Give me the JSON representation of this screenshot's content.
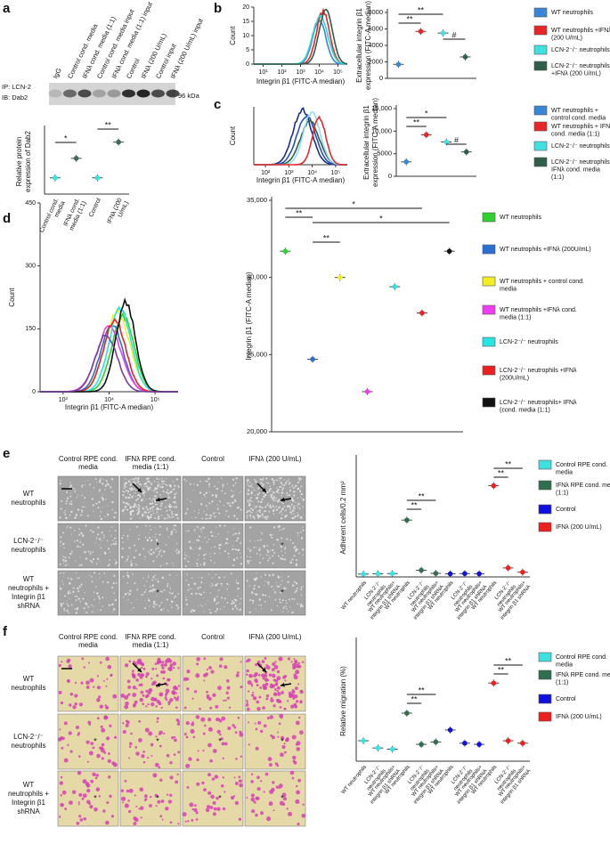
{
  "panel_labels": [
    "a",
    "b",
    "c",
    "d",
    "e",
    "f"
  ],
  "blot": {
    "lanes": [
      "IgG",
      "Control cond. media",
      "IFNλ cond. media (1:1)",
      "Control cond. media input",
      "IFNλ cond. media (1:1) input",
      "Control",
      "IFNλ (200 U/mL)",
      "Control input",
      "IFNλ (200 U/mL) input"
    ],
    "ip": "IP: LCN-2",
    "ib": "IB: Dab2",
    "size": "96 kDa"
  },
  "flow": [
    {
      "ylabel": "Count",
      "xlabel": "Integrin β1 (FITC-A median)",
      "yticks": [
        0,
        5,
        10,
        15,
        20
      ],
      "xticks": [
        "10¹",
        "10²",
        "10³",
        "10⁴",
        "10⁵"
      ]
    },
    {
      "ylabel": "Count",
      "xlabel": "Integrin β1 (FITC-A median)",
      "xticks": [
        "10²",
        "10³",
        "10⁴",
        "10⁵"
      ]
    },
    {
      "ylabel": "Count",
      "xlabel": "Integrin β1 (FITC-A median)",
      "yticks": [
        0,
        150,
        300,
        450
      ],
      "xticks": [
        "10³",
        "10⁴",
        "10⁵"
      ]
    }
  ],
  "chart_data": [
    {
      "type": "dot",
      "ylabel": [
        "Relative protein",
        "expression of Dab2"
      ],
      "categories": [
        "Control cond. media",
        "IFNλ cond. media (1:1)",
        "Control",
        "IFNλ (200 U/mL)"
      ],
      "values": [
        1,
        2.2,
        1,
        3.2
      ],
      "colors": [
        "#2ee6e6",
        "#3d6b5a",
        "#2ee6e6",
        "#3d6b5a"
      ],
      "ylim": [
        0,
        4
      ],
      "annotations": [
        "*",
        "**"
      ]
    },
    {
      "type": "dot",
      "ylabel": [
        "Extracellular integrin β1",
        "expression (FITC-A median)"
      ],
      "categories": [
        "WT neutrophils",
        "WT neutrophils +IFNλ (200 U/mL)",
        "LCN-2⁻/⁻ neutrophils",
        "LCN-2⁻/⁻ neutrophils +IFNλ (200 U/mL)"
      ],
      "values": [
        1700,
        5700,
        5500,
        2600
      ],
      "colors": [
        "#3a86d6",
        "#e8262a",
        "#3fe0e0",
        "#2f5e4a"
      ],
      "ylim": [
        0,
        8000
      ],
      "yticks": [
        0,
        2000,
        4000,
        6000,
        8000
      ],
      "annotations": [
        "**",
        "**",
        "#"
      ]
    },
    {
      "type": "dot",
      "ylabel": [
        "Extracellular integrin β1",
        "expression (FITC-A median)"
      ],
      "categories": [
        "WT neutrophils + control cond. media",
        "WT neutrophils + IFNλ cond. media (1:1)",
        "LCN-2⁻/⁻ neutrophils",
        "LCN-2⁻/⁻ neutrophils+ IFNλ cond. media (1:1)"
      ],
      "values": [
        3200,
        9200,
        7600,
        5400
      ],
      "colors": [
        "#3a86d6",
        "#e8262a",
        "#3fe0e0",
        "#2f5e4a"
      ],
      "ylim": [
        0,
        15000
      ],
      "yticks": [
        0,
        5000,
        {
          "value": 10000,
          "label": "10,000"
        },
        {
          "value": 15000,
          "label": "15,000"
        }
      ],
      "annotations": [
        "*",
        "**",
        "#"
      ]
    },
    {
      "type": "dot",
      "ylabel": [
        "Integrin β1 (FITC-A median)"
      ],
      "categories": [
        "WT neutrophils",
        "WT neutrophils +IFNλ (200U/mL)",
        "WT neutrophils + control cond. media",
        "WT neutrophils +IFNλ cond. media (1:1)",
        "LCN-2⁻/⁻ neutrophils",
        "LCN-2⁻/⁻ neutrophils +IFNλ (200U/mL)",
        "LCN-2⁻/⁻ neutrophils+ IFNλ (cond. media (1:1)"
      ],
      "values": [
        31700,
        24700,
        30000,
        22600,
        29400,
        27700,
        31700
      ],
      "colors": [
        "#2fd12f",
        "#2a6fd6",
        "#f3ee1f",
        "#f03cf0",
        "#27e4e4",
        "#ee1f1f",
        "#111111"
      ],
      "ylim": [
        20000,
        35000
      ],
      "yticks": [
        {
          "value": 20000,
          "label": "20,000"
        },
        {
          "value": 25000,
          "label": "25,000"
        },
        {
          "value": 30000,
          "label": "30,000"
        },
        {
          "value": 35000,
          "label": "35,000"
        }
      ],
      "annotations": [
        "**",
        "*",
        "*",
        "**"
      ]
    },
    {
      "type": "dot",
      "ylabel": [
        "Adherent cells/0.2 mm²"
      ],
      "categories": [
        "WT neutrophils",
        "LCN-2⁻/⁻ neutrophils",
        "WT neutrophils+ integrin β1 shRNA",
        "WT neutrophils",
        "LCN-2⁻/⁻ neutrophils",
        "WT neutrophils+ integrin β1 shRNA",
        "WT neutrophils",
        "LCN-2⁻/⁻ neutrophils",
        "WT neutrophils+ integrin β1 shRNA",
        "WT neutrophils",
        "LCN-2⁻/⁻ neutrophils",
        "WT neutrophils+ integrin β1 shRNA"
      ],
      "series": [
        {
          "name": "Control RPE cond. media",
          "color": "#3fe0e0",
          "values": [
            12,
            13,
            14,
            null,
            null,
            null,
            null,
            null,
            null,
            null,
            null,
            null
          ]
        },
        {
          "name": "IFNλ RPE cond. media (1:1)",
          "color": "#2f6e4f",
          "values": [
            null,
            null,
            null,
            240,
            28,
            15,
            null,
            null,
            null,
            null,
            null,
            null
          ]
        },
        {
          "name": "Control",
          "color": "#1010e0",
          "values": [
            null,
            null,
            null,
            null,
            null,
            null,
            13,
            14,
            13,
            null,
            null,
            null
          ]
        },
        {
          "name": "IFNλ (200 U/mL)",
          "color": "#ee1f1f",
          "values": [
            null,
            null,
            null,
            null,
            null,
            null,
            null,
            null,
            null,
            385,
            38,
            20
          ]
        }
      ],
      "ylim": [
        0,
        500
      ],
      "annotations": [
        "**",
        "**",
        "**",
        "**"
      ]
    },
    {
      "type": "dot",
      "ylabel": [
        "Relative migration (%)"
      ],
      "categories": [
        "WT neutrophils",
        "LCN-2⁻/⁻ neutrophils",
        "WT neutrophils+ integrin β1 shRNA",
        "WT neutrophils",
        "LCN-2⁻/⁻ neutrophils",
        "WT neutrophils+ integrin β1 shRNA",
        "WT neutrophils",
        "LCN-2⁻/⁻ neutrophils",
        "WT neutrophils+ integrin β1 shRNA",
        "WT neutrophils",
        "LCN-2⁻/⁻ neutrophils",
        "WT neutrophils+ integrin β1 shRNA"
      ],
      "series": [
        {
          "name": "Control RPE cond. media",
          "color": "#3fe0e0",
          "values": [
            17,
            11,
            10,
            null,
            null,
            null,
            null,
            null,
            null,
            null,
            null,
            null
          ]
        },
        {
          "name": "IFNλ RPE cond. media (1:1)",
          "color": "#2f6e4f",
          "values": [
            null,
            null,
            null,
            40,
            14,
            16,
            null,
            null,
            null,
            null,
            null,
            null
          ]
        },
        {
          "name": "Control",
          "color": "#1010e0",
          "values": [
            null,
            null,
            null,
            null,
            null,
            null,
            26,
            15,
            14,
            null,
            null,
            null
          ]
        },
        {
          "name": "IFNλ (200 U/mL)",
          "color": "#ee1f1f",
          "values": [
            null,
            null,
            null,
            null,
            null,
            null,
            null,
            null,
            null,
            65,
            17,
            15
          ]
        }
      ],
      "ylim": [
        0,
        100
      ],
      "annotations": [
        "**",
        "**",
        "**",
        "**"
      ]
    }
  ],
  "micrographs": [
    {
      "columns": [
        "Control RPE cond. media",
        "IFNλ RPE cond. media (1:1)",
        "Control",
        "IFNλ (200 U/mL)"
      ],
      "rows": [
        "WT neutrophils",
        "LCN-2⁻/⁻ neutrophils",
        "WT neutrophils + Integrin β1 shRNA"
      ],
      "asterisk": "*"
    },
    {
      "columns": [
        "Control RPE cond. media",
        "IFNλ RPE cond. media (1:1)",
        "Control",
        "IFNλ (200 U/mL)"
      ],
      "rows": [
        "WT neutrophils",
        "LCN-2⁻/⁻ neutrophils",
        "WT neutrophils + Integrin β1 shRNA"
      ],
      "asterisk": "*"
    }
  ]
}
